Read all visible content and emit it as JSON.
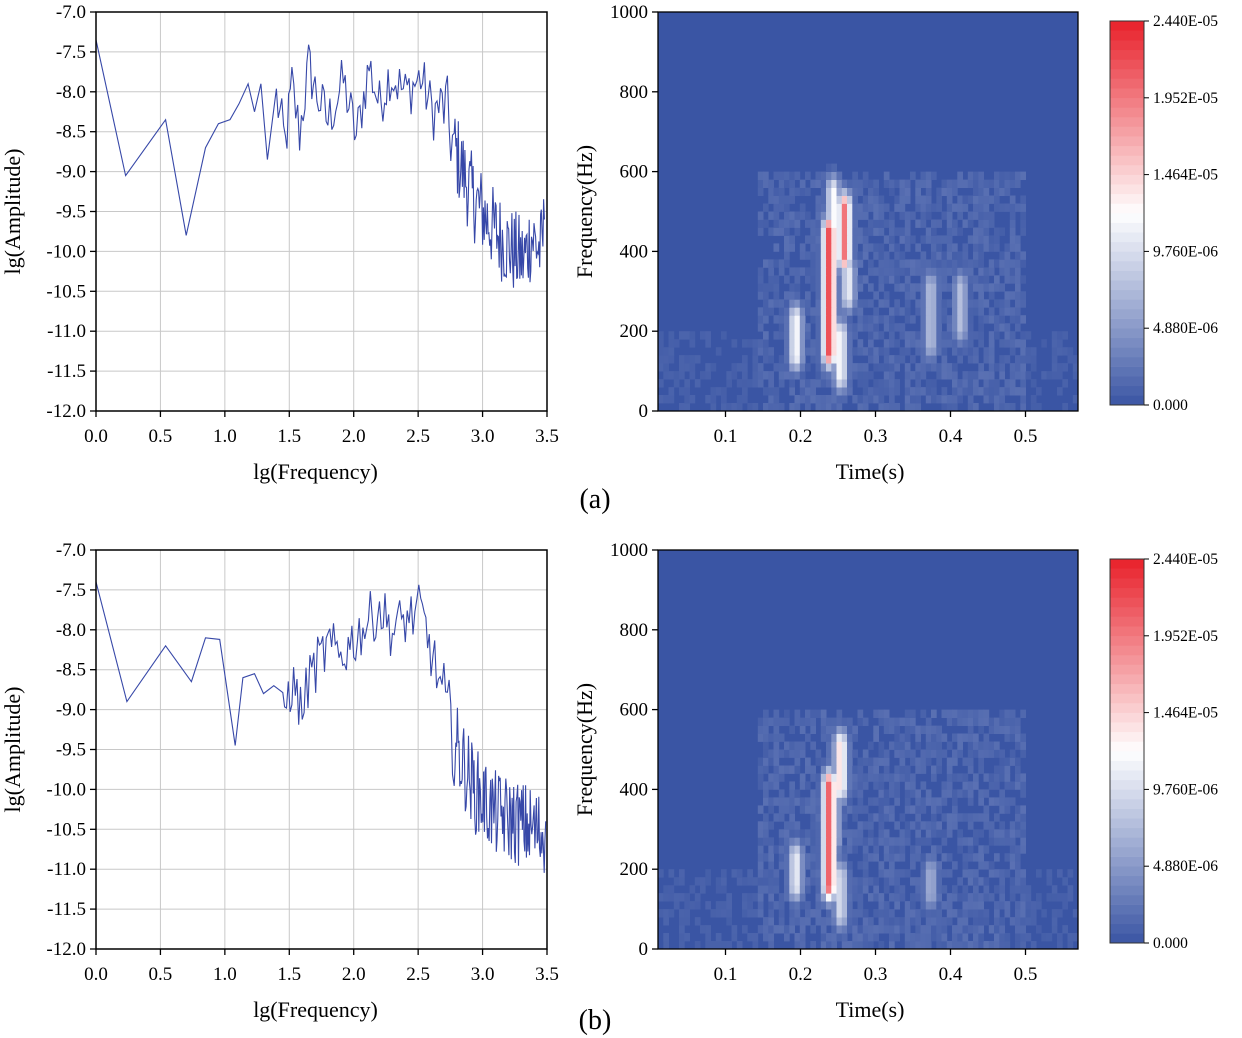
{
  "panels": [
    {
      "id": "a",
      "label": "(a)"
    },
    {
      "id": "b",
      "label": "(b)"
    }
  ],
  "colors": {
    "line": "#3748a8",
    "grid": "#c8c8c8",
    "heat_low": "#3a55a4",
    "heat_mid": "#ffffff",
    "heat_high": "#e8202a"
  },
  "chart_data": [
    {
      "panel": "a",
      "type": "line",
      "title": "",
      "xlabel": "lg(Frequency)",
      "ylabel": "lg(Amplitude)",
      "xlim": [
        0.0,
        3.5
      ],
      "ylim": [
        -12.0,
        -7.0
      ],
      "grid": true,
      "xticks": [
        "0.0",
        "0.5",
        "1.0",
        "1.5",
        "2.0",
        "2.5",
        "3.0",
        "3.5"
      ],
      "yticks": [
        "-7.0",
        "-7.5",
        "-8.0",
        "-8.5",
        "-9.0",
        "-9.5",
        "-10.0",
        "-10.5",
        "-11.0",
        "-11.5",
        "-12.0"
      ],
      "x": [
        0.0,
        0.23,
        0.54,
        0.7,
        0.85,
        0.95,
        1.04,
        1.11,
        1.18,
        1.23,
        1.28,
        1.33,
        1.4,
        1.47,
        1.52,
        1.58,
        1.65,
        1.7,
        1.8,
        1.92,
        2.02,
        2.12,
        2.2,
        2.28,
        2.4,
        2.52,
        2.62,
        2.7,
        2.78,
        2.85,
        2.92,
        3.0,
        3.08,
        3.16,
        3.24,
        3.32,
        3.38,
        3.45,
        3.48
      ],
      "y": [
        -7.35,
        -9.05,
        -8.35,
        -9.8,
        -8.7,
        -8.4,
        -8.35,
        -8.15,
        -7.9,
        -8.25,
        -7.9,
        -8.85,
        -8.0,
        -8.6,
        -7.85,
        -8.45,
        -7.6,
        -7.9,
        -8.3,
        -7.8,
        -8.5,
        -7.6,
        -8.1,
        -7.7,
        -7.95,
        -7.75,
        -8.2,
        -8.05,
        -8.6,
        -8.9,
        -9.2,
        -9.4,
        -9.6,
        -9.75,
        -9.9,
        -10.0,
        -9.7,
        -9.9,
        -9.6
      ],
      "series_name": ""
    },
    {
      "panel": "a",
      "type": "heatmap",
      "title": "",
      "xlabel": "Time(s)",
      "ylabel": "Frequency(Hz)",
      "xlim": [
        0.01,
        0.57
      ],
      "ylim": [
        0,
        1000
      ],
      "xticks": [
        "0.1",
        "0.2",
        "0.3",
        "0.4",
        "0.5"
      ],
      "yticks": [
        "0",
        "200",
        "400",
        "600",
        "800",
        "1000"
      ],
      "colorbar": {
        "min": 0.0,
        "max": 2.44e-05,
        "ticks": [
          "0.000",
          "4.880E-06",
          "9.760E-06",
          "1.464E-05",
          "1.952E-05",
          "2.440E-05"
        ]
      },
      "hotspots": [
        {
          "t": 0.235,
          "f": [
            140,
            440
          ],
          "level": 1.0
        },
        {
          "t": 0.255,
          "f": [
            380,
            500
          ],
          "level": 0.9
        },
        {
          "t": 0.24,
          "f": [
            460,
            540
          ],
          "level": 0.55
        },
        {
          "t": 0.25,
          "f": [
            80,
            180
          ],
          "level": 0.55
        },
        {
          "t": 0.19,
          "f": [
            130,
            220
          ],
          "level": 0.55
        },
        {
          "t": 0.26,
          "f": [
            280,
            340
          ],
          "level": 0.5
        },
        {
          "t": 0.37,
          "f": [
            160,
            300
          ],
          "level": 0.35
        },
        {
          "t": 0.41,
          "f": [
            200,
            300
          ],
          "level": 0.35
        }
      ]
    },
    {
      "panel": "b",
      "type": "line",
      "title": "",
      "xlabel": "lg(Frequency)",
      "ylabel": "lg(Amplitude)",
      "xlim": [
        0.0,
        3.5
      ],
      "ylim": [
        -12.0,
        -7.0
      ],
      "grid": true,
      "xticks": [
        "0.0",
        "0.5",
        "1.0",
        "1.5",
        "2.0",
        "2.5",
        "3.0",
        "3.5"
      ],
      "yticks": [
        "-7.0",
        "-7.5",
        "-8.0",
        "-8.5",
        "-9.0",
        "-9.5",
        "-10.0",
        "-10.5",
        "-11.0",
        "-11.5",
        "-12.0"
      ],
      "x": [
        0.0,
        0.24,
        0.54,
        0.74,
        0.85,
        0.96,
        1.08,
        1.14,
        1.23,
        1.3,
        1.38,
        1.45,
        1.52,
        1.6,
        1.66,
        1.72,
        1.8,
        1.9,
        2.0,
        2.1,
        2.2,
        2.3,
        2.4,
        2.52,
        2.6,
        2.7,
        2.78,
        2.86,
        2.94,
        3.02,
        3.1,
        3.18,
        3.26,
        3.34,
        3.4,
        3.46,
        3.49
      ],
      "y": [
        -7.4,
        -8.9,
        -8.2,
        -8.65,
        -8.1,
        -8.12,
        -9.45,
        -8.6,
        -8.55,
        -8.8,
        -8.7,
        -8.95,
        -8.6,
        -8.95,
        -8.5,
        -8.35,
        -8.15,
        -8.25,
        -8.05,
        -7.85,
        -7.65,
        -7.95,
        -7.8,
        -7.7,
        -8.2,
        -8.8,
        -9.3,
        -9.6,
        -9.9,
        -10.05,
        -10.2,
        -10.25,
        -10.3,
        -10.35,
        -10.4,
        -10.45,
        -10.4
      ],
      "series_name": ""
    },
    {
      "panel": "b",
      "type": "heatmap",
      "title": "",
      "xlabel": "Time(s)",
      "ylabel": "Frequency(Hz)",
      "xlim": [
        0.01,
        0.57
      ],
      "ylim": [
        0,
        1000
      ],
      "xticks": [
        "0.1",
        "0.2",
        "0.3",
        "0.4",
        "0.5"
      ],
      "yticks": [
        "0",
        "200",
        "400",
        "600",
        "800",
        "1000"
      ],
      "colorbar": {
        "min": 0.0,
        "max": 2.44e-05,
        "ticks": [
          "0.000",
          "4.880E-06",
          "9.760E-06",
          "1.464E-05",
          "1.952E-05",
          "2.440E-05"
        ]
      },
      "hotspots": [
        {
          "t": 0.235,
          "f": [
            150,
            400
          ],
          "level": 0.95
        },
        {
          "t": 0.25,
          "f": [
            400,
            500
          ],
          "level": 0.65
        },
        {
          "t": 0.24,
          "f": [
            270,
            360
          ],
          "level": 0.5
        },
        {
          "t": 0.19,
          "f": [
            150,
            220
          ],
          "level": 0.5
        },
        {
          "t": 0.25,
          "f": [
            80,
            170
          ],
          "level": 0.45
        },
        {
          "t": 0.37,
          "f": [
            130,
            180
          ],
          "level": 0.3
        }
      ]
    }
  ]
}
